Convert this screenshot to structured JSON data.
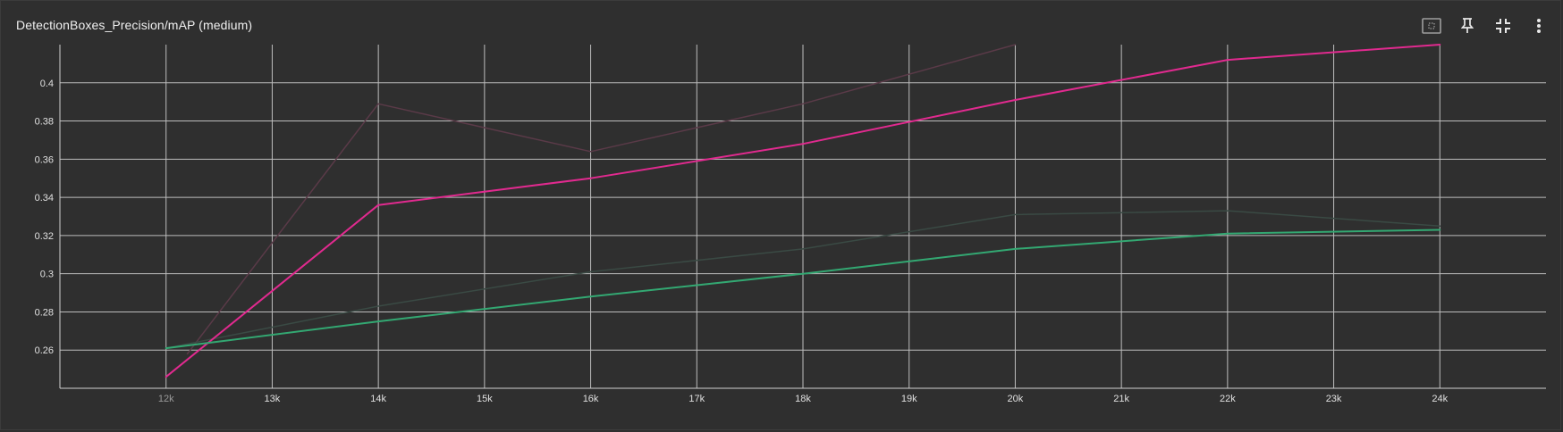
{
  "header": {
    "title": "DetectionBoxes_Precision/mAP (medium)"
  },
  "toolbar": {
    "icons": [
      "fit-domain-icon",
      "pin-icon",
      "collapse-icon",
      "more-vert-icon"
    ]
  },
  "colors": {
    "background": "#2f2f2f",
    "grid": "#bdbdbd",
    "magenta": "#e12a8f",
    "magenta_faded": "#5a3a48",
    "green": "#33a872",
    "green_faded": "#3a4a44"
  },
  "chart_data": {
    "type": "line",
    "title": "DetectionBoxes_Precision/mAP (medium)",
    "xlabel": "",
    "ylabel": "",
    "xlim": [
      11000,
      25000
    ],
    "ylim": [
      0.24,
      0.42
    ],
    "x_ticks": [
      12000,
      13000,
      14000,
      15000,
      16000,
      17000,
      18000,
      19000,
      20000,
      21000,
      22000,
      23000,
      24000
    ],
    "x_tick_labels": [
      "12k",
      "13k",
      "14k",
      "15k",
      "16k",
      "17k",
      "18k",
      "19k",
      "20k",
      "21k",
      "22k",
      "23k",
      "24k"
    ],
    "y_ticks": [
      0.26,
      0.28,
      0.3,
      0.32,
      0.34,
      0.36,
      0.38,
      0.4
    ],
    "y_tick_labels": [
      "0.26",
      "0.28",
      "0.3",
      "0.32",
      "0.34",
      "0.36",
      "0.38",
      "0.4"
    ],
    "grid": true,
    "series": [
      {
        "color": "#5a3a48",
        "width": 1.5,
        "x": [
          12200,
          14000,
          16000,
          18000,
          20000
        ],
        "y": [
          0.258,
          0.389,
          0.364,
          0.389,
          0.42
        ]
      },
      {
        "color": "#3a4a44",
        "width": 1.5,
        "x": [
          12000,
          14000,
          16000,
          18000,
          20000,
          22000,
          24000
        ],
        "y": [
          0.261,
          0.283,
          0.301,
          0.313,
          0.331,
          0.333,
          0.325
        ]
      },
      {
        "color": "#e12a8f",
        "width": 2,
        "x": [
          12000,
          14000,
          16000,
          18000,
          20000,
          22000,
          24000
        ],
        "y": [
          0.246,
          0.336,
          0.35,
          0.368,
          0.391,
          0.412,
          0.42
        ]
      },
      {
        "color": "#33a872",
        "width": 2,
        "x": [
          12000,
          14000,
          16000,
          18000,
          20000,
          22000,
          24000
        ],
        "y": [
          0.261,
          0.275,
          0.288,
          0.3,
          0.313,
          0.321,
          0.323
        ]
      }
    ]
  }
}
